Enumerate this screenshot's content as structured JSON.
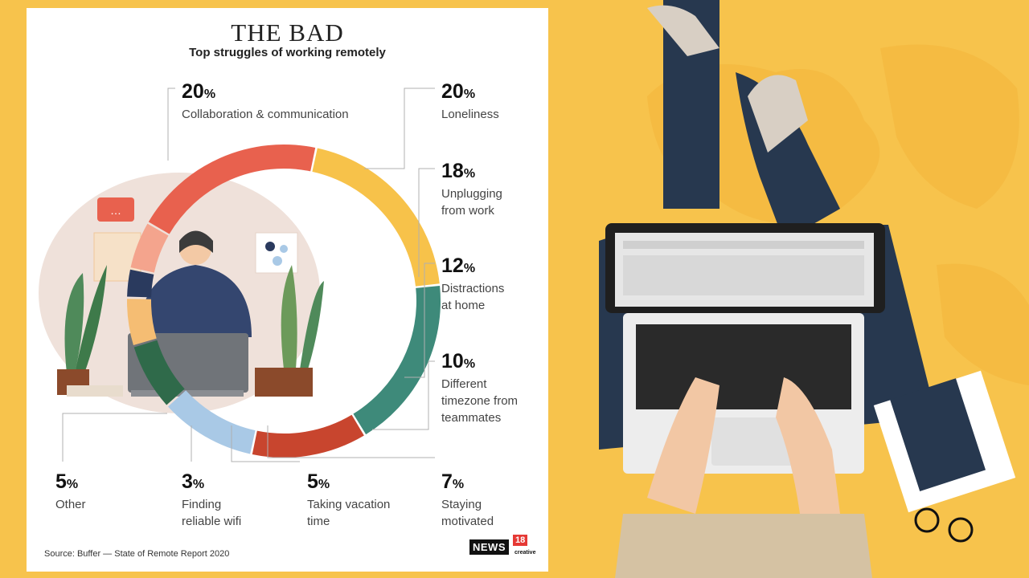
{
  "chart_data": {
    "type": "donut",
    "title": "THE BAD",
    "subtitle": "Top struggles of working remotely",
    "slices": [
      {
        "label": "Collaboration & communication",
        "pct_text": "20",
        "value": 20,
        "color": "#e8614e"
      },
      {
        "label": "Loneliness",
        "pct_text": "20",
        "value": 20,
        "color": "#f7c24a"
      },
      {
        "label": "Unplugging from work",
        "pct_text": "18",
        "value": 18,
        "color": "#3e8a7a"
      },
      {
        "label": "Distractions at home",
        "pct_text": "12",
        "value": 12,
        "color": "#c8452e"
      },
      {
        "label": "Different timezone from teammates",
        "pct_text": "10",
        "value": 10,
        "color": "#a9c9e6"
      },
      {
        "label": "Staying motivated",
        "pct_text": "7",
        "value": 7,
        "color": "#2f6a4a"
      },
      {
        "label": "Taking vacation time",
        "pct_text": "5",
        "value": 5,
        "color": "#f5bd73"
      },
      {
        "label": "Finding reliable wifi",
        "pct_text": "3",
        "value": 3,
        "color": "#2a3a5e"
      },
      {
        "label": "Other",
        "pct_text": "5",
        "value": 5,
        "color": "#f4a48d"
      }
    ],
    "legend_lines": {
      "collab": [
        "Collaboration & communication"
      ],
      "lonely": [
        "Loneliness"
      ],
      "unplug": [
        "Unplugging",
        "from work"
      ],
      "distract": [
        "Distractions",
        "at home"
      ],
      "timezone": [
        "Different",
        "timezone from",
        "teammates"
      ],
      "motivated": [
        "Staying",
        "motivated"
      ],
      "vacation": [
        "Taking vacation",
        "time"
      ],
      "wifi": [
        "Finding",
        "reliable wifi"
      ],
      "other": [
        "Other"
      ]
    },
    "percent_sign": "%",
    "source": "Source: Buffer — State of Remote Report 2020"
  },
  "branding": {
    "logo_text": "NEWS",
    "logo_num": "18",
    "logo_sub": "creative"
  },
  "colors": {
    "background": "#f7c34c",
    "card": "#ffffff",
    "leader": "#b0b0b0"
  }
}
